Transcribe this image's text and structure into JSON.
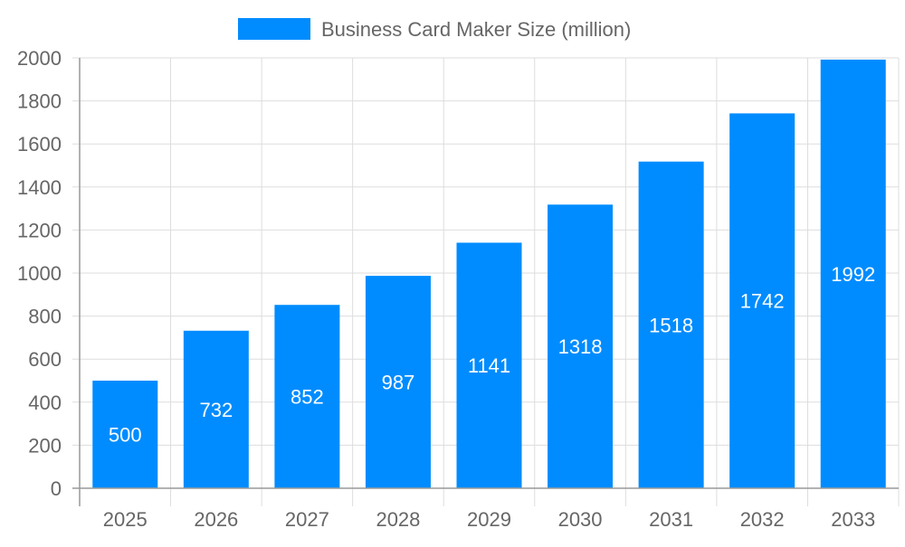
{
  "chart_data": {
    "type": "bar",
    "title": "",
    "xlabel": "",
    "ylabel": "",
    "categories": [
      "2025",
      "2026",
      "2027",
      "2028",
      "2029",
      "2030",
      "2031",
      "2032",
      "2033"
    ],
    "series": [
      {
        "name": "Business Card Maker Size (million)",
        "values": [
          500,
          732,
          852,
          987,
          1141,
          1318,
          1518,
          1742,
          1992
        ],
        "color": "#008cff"
      }
    ],
    "ylim": [
      0,
      2000
    ],
    "yticks": [
      0,
      200,
      400,
      600,
      800,
      1000,
      1200,
      1400,
      1600,
      1800,
      2000
    ],
    "grid": true,
    "legend": "top-center",
    "data_labels": true
  }
}
